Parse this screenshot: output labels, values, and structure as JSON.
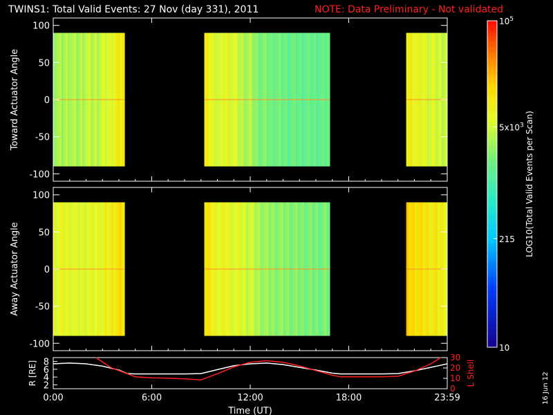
{
  "header": {
    "title": "TWINS1: Total Valid Events: 27 Nov (day 331), 2011",
    "note": "NOTE: Data Preliminary - Not validated",
    "note_color": "#ff2020"
  },
  "date_stamp": "16 Jun 12",
  "colors": {
    "background": "#000000",
    "axes": "#ffffff",
    "r_line": "#ffffff",
    "lshell_line": "#ff2020"
  },
  "chart_data": [
    {
      "type": "heatmap",
      "ylabel": "Toward Actuator Angle",
      "ylim": [
        -110,
        110
      ],
      "yticks": [
        100,
        50,
        0,
        -50,
        -100
      ],
      "x_range_hours": [
        0,
        24
      ],
      "angle_range": [
        -90,
        90
      ],
      "data_intervals_hours": [
        [
          0,
          4.35
        ],
        [
          9.2,
          16.85
        ],
        [
          21.5,
          24
        ]
      ],
      "band_profile": {
        "hours": [
          0,
          0.5,
          1,
          1.5,
          2,
          2.5,
          3,
          3.5,
          3.8,
          4.1,
          4.35,
          9.2,
          9.5,
          9.8,
          10.2,
          10.5,
          11,
          11.5,
          12,
          12.5,
          13,
          14,
          15,
          16,
          16.85,
          21.5,
          21.8,
          22.2,
          22.6,
          23,
          23.5,
          24
        ],
        "log_events": [
          3.55,
          3.5,
          3.6,
          3.5,
          3.65,
          3.6,
          3.7,
          3.8,
          3.9,
          4.0,
          3.95,
          3.85,
          3.9,
          3.8,
          3.7,
          3.85,
          3.75,
          3.6,
          3.55,
          3.35,
          3.3,
          3.25,
          3.2,
          3.2,
          3.2,
          4.0,
          3.95,
          3.85,
          3.8,
          3.75,
          3.7,
          3.7
        ]
      },
      "colorbar": {
        "label": "LOG10(Total Valid Events per Scan)",
        "scale": "log",
        "range": [
          10,
          100000
        ],
        "tick_labels": [
          "10",
          "215",
          "5x10^3",
          "10^5"
        ]
      }
    },
    {
      "type": "heatmap",
      "ylabel": "Away Actuator Angle",
      "ylim": [
        -110,
        110
      ],
      "yticks": [
        100,
        50,
        0,
        -50,
        -100
      ],
      "x_range_hours": [
        0,
        24
      ],
      "angle_range": [
        -90,
        90
      ],
      "data_intervals_hours": [
        [
          0,
          4.35
        ],
        [
          9.2,
          16.85
        ],
        [
          21.5,
          24
        ]
      ],
      "band_profile": {
        "hours": [
          0,
          0.5,
          1,
          1.5,
          2,
          2.5,
          3,
          3.5,
          3.8,
          4.1,
          4.35,
          9.2,
          9.5,
          9.8,
          10.2,
          10.5,
          11,
          11.5,
          12,
          12.5,
          13,
          14,
          15,
          16,
          16.85,
          21.5,
          21.8,
          22.2,
          22.6,
          23,
          23.5,
          24
        ],
        "log_events": [
          3.85,
          3.8,
          3.85,
          3.75,
          3.8,
          3.8,
          3.85,
          3.95,
          4.05,
          4.1,
          4.0,
          4.05,
          4.0,
          3.9,
          3.85,
          3.85,
          3.8,
          3.75,
          3.7,
          3.55,
          3.45,
          3.4,
          3.35,
          3.3,
          3.3,
          4.2,
          4.15,
          4.1,
          4.05,
          4.0,
          3.95,
          3.9
        ]
      }
    },
    {
      "type": "line",
      "ylabel_left": "R [RE]",
      "ylabel_right": "L Shell",
      "xlabel": "Time (UT)",
      "x_tick_labels": [
        "0:00",
        "6:00",
        "12:00",
        "18:00",
        "23:59"
      ],
      "x_tick_hours": [
        0,
        6,
        12,
        18,
        24
      ],
      "ylim_left": [
        1,
        9
      ],
      "yticks_left": [
        2,
        4,
        6,
        8
      ],
      "ylim_right": [
        0,
        30
      ],
      "yticks_right": [
        0,
        10,
        20,
        30
      ],
      "series": [
        {
          "axis": "left",
          "hours": [
            0,
            1,
            2,
            3,
            4,
            4.5,
            5,
            6,
            7,
            8,
            9,
            10,
            11,
            12,
            13,
            14,
            15,
            16,
            17,
            17.5,
            18,
            19,
            20,
            21,
            22,
            23,
            24
          ],
          "values": [
            7.4,
            7.6,
            7.4,
            6.8,
            5.8,
            4.9,
            4.8,
            4.8,
            4.8,
            4.8,
            4.9,
            5.9,
            6.9,
            7.4,
            7.6,
            7.2,
            6.5,
            5.8,
            5.0,
            4.8,
            4.8,
            4.8,
            4.8,
            4.9,
            5.6,
            6.5,
            7.4
          ]
        },
        {
          "axis": "right",
          "hours": [
            2.6,
            3.5,
            4.5,
            5,
            6,
            7,
            8,
            9,
            10,
            11,
            12,
            13,
            14,
            15,
            16,
            17,
            17.5,
            18,
            19,
            20,
            21,
            22,
            23,
            23.6
          ],
          "values": [
            30,
            20.5,
            14.5,
            11.5,
            10.5,
            10.2,
            9.5,
            8.5,
            14.5,
            21,
            25.5,
            27,
            25.5,
            22,
            17.5,
            13,
            11.5,
            11.5,
            11.5,
            11.5,
            12,
            17,
            24,
            30
          ]
        }
      ]
    }
  ]
}
